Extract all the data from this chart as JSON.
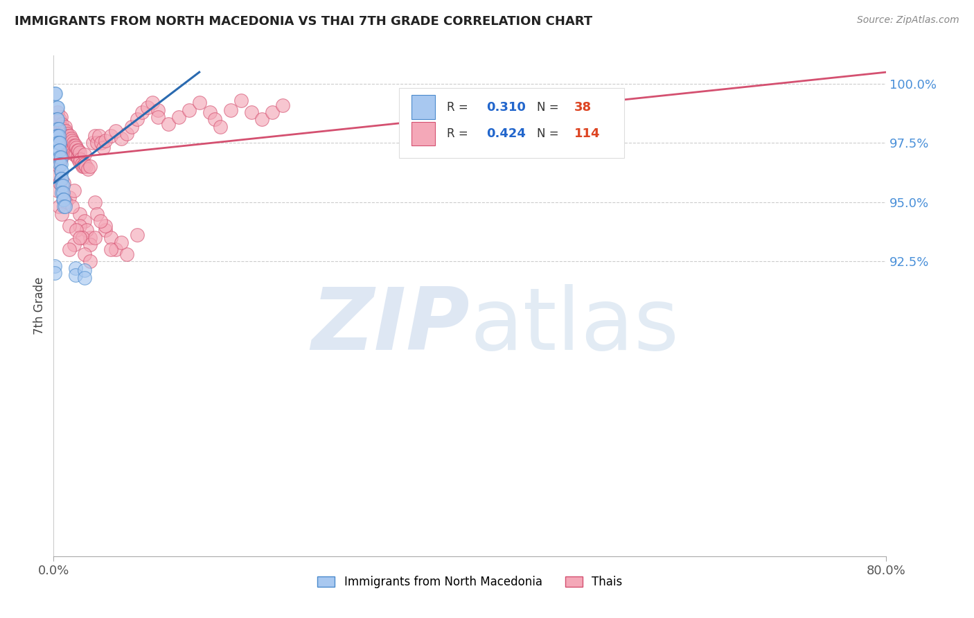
{
  "title": "IMMIGRANTS FROM NORTH MACEDONIA VS THAI 7TH GRADE CORRELATION CHART",
  "source": "Source: ZipAtlas.com",
  "ylabel": "7th Grade",
  "blue_color": "#A8C8F0",
  "pink_color": "#F4A8B8",
  "blue_edge_color": "#4A8ACC",
  "pink_edge_color": "#D45070",
  "blue_line_color": "#2A6AB0",
  "pink_line_color": "#D45070",
  "xmin": 0.0,
  "xmax": 0.8,
  "ymin": 80.0,
  "ymax": 101.2,
  "ytick_vals": [
    92.5,
    95.0,
    97.5,
    100.0
  ],
  "ytick_labels": [
    "92.5%",
    "95.0%",
    "97.5%",
    "100.0%"
  ],
  "blue_scatter": [
    [
      0.001,
      99.6
    ],
    [
      0.002,
      99.6
    ],
    [
      0.003,
      99.0
    ],
    [
      0.004,
      99.0
    ],
    [
      0.003,
      98.5
    ],
    [
      0.004,
      98.5
    ],
    [
      0.004,
      98.1
    ],
    [
      0.005,
      98.1
    ],
    [
      0.003,
      97.8
    ],
    [
      0.004,
      97.8
    ],
    [
      0.005,
      97.8
    ],
    [
      0.004,
      97.5
    ],
    [
      0.005,
      97.5
    ],
    [
      0.006,
      97.5
    ],
    [
      0.005,
      97.2
    ],
    [
      0.006,
      97.2
    ],
    [
      0.006,
      96.9
    ],
    [
      0.007,
      96.9
    ],
    [
      0.006,
      96.6
    ],
    [
      0.007,
      96.6
    ],
    [
      0.007,
      96.3
    ],
    [
      0.008,
      96.3
    ],
    [
      0.007,
      96.0
    ],
    [
      0.008,
      96.0
    ],
    [
      0.008,
      95.7
    ],
    [
      0.009,
      95.7
    ],
    [
      0.008,
      95.4
    ],
    [
      0.009,
      95.4
    ],
    [
      0.009,
      95.1
    ],
    [
      0.01,
      95.1
    ],
    [
      0.01,
      94.8
    ],
    [
      0.011,
      94.8
    ],
    [
      0.001,
      92.3
    ],
    [
      0.001,
      92.0
    ],
    [
      0.021,
      92.2
    ],
    [
      0.021,
      91.9
    ],
    [
      0.03,
      92.1
    ],
    [
      0.03,
      91.8
    ]
  ],
  "pink_scatter": [
    [
      0.002,
      98.2
    ],
    [
      0.003,
      98.5
    ],
    [
      0.004,
      98.8
    ],
    [
      0.005,
      98.3
    ],
    [
      0.005,
      98.0
    ],
    [
      0.006,
      98.5
    ],
    [
      0.006,
      98.0
    ],
    [
      0.007,
      98.6
    ],
    [
      0.007,
      98.2
    ],
    [
      0.007,
      97.8
    ],
    [
      0.008,
      98.3
    ],
    [
      0.008,
      97.9
    ],
    [
      0.008,
      97.5
    ],
    [
      0.009,
      98.1
    ],
    [
      0.009,
      97.7
    ],
    [
      0.009,
      97.3
    ],
    [
      0.01,
      98.0
    ],
    [
      0.01,
      97.6
    ],
    [
      0.011,
      98.2
    ],
    [
      0.011,
      97.8
    ],
    [
      0.011,
      97.4
    ],
    [
      0.012,
      98.0
    ],
    [
      0.012,
      97.6
    ],
    [
      0.012,
      97.2
    ],
    [
      0.013,
      97.9
    ],
    [
      0.013,
      97.5
    ],
    [
      0.013,
      97.1
    ],
    [
      0.014,
      97.8
    ],
    [
      0.014,
      97.4
    ],
    [
      0.015,
      97.7
    ],
    [
      0.015,
      97.3
    ],
    [
      0.016,
      97.8
    ],
    [
      0.016,
      97.4
    ],
    [
      0.017,
      97.7
    ],
    [
      0.017,
      97.3
    ],
    [
      0.018,
      97.6
    ],
    [
      0.018,
      97.2
    ],
    [
      0.019,
      97.5
    ],
    [
      0.019,
      97.1
    ],
    [
      0.02,
      97.4
    ],
    [
      0.02,
      97.0
    ],
    [
      0.021,
      97.4
    ],
    [
      0.021,
      97.0
    ],
    [
      0.022,
      97.3
    ],
    [
      0.023,
      97.2
    ],
    [
      0.023,
      96.9
    ],
    [
      0.024,
      97.2
    ],
    [
      0.024,
      96.8
    ],
    [
      0.025,
      97.1
    ],
    [
      0.025,
      96.7
    ],
    [
      0.026,
      96.8
    ],
    [
      0.027,
      96.6
    ],
    [
      0.028,
      96.5
    ],
    [
      0.029,
      96.5
    ],
    [
      0.03,
      97.0
    ],
    [
      0.03,
      96.6
    ],
    [
      0.031,
      96.5
    ],
    [
      0.033,
      96.4
    ],
    [
      0.035,
      96.5
    ],
    [
      0.038,
      97.5
    ],
    [
      0.04,
      97.8
    ],
    [
      0.042,
      97.5
    ],
    [
      0.044,
      97.8
    ],
    [
      0.046,
      97.5
    ],
    [
      0.048,
      97.3
    ],
    [
      0.05,
      97.6
    ],
    [
      0.055,
      97.8
    ],
    [
      0.06,
      98.0
    ],
    [
      0.065,
      97.7
    ],
    [
      0.07,
      97.9
    ],
    [
      0.075,
      98.2
    ],
    [
      0.08,
      98.5
    ],
    [
      0.085,
      98.8
    ],
    [
      0.09,
      99.0
    ],
    [
      0.095,
      99.2
    ],
    [
      0.1,
      98.9
    ],
    [
      0.1,
      98.6
    ],
    [
      0.11,
      98.3
    ],
    [
      0.12,
      98.6
    ],
    [
      0.13,
      98.9
    ],
    [
      0.14,
      99.2
    ],
    [
      0.15,
      98.8
    ],
    [
      0.155,
      98.5
    ],
    [
      0.16,
      98.2
    ],
    [
      0.17,
      98.9
    ],
    [
      0.18,
      99.3
    ],
    [
      0.19,
      98.8
    ],
    [
      0.2,
      98.5
    ],
    [
      0.21,
      98.8
    ],
    [
      0.22,
      99.1
    ],
    [
      0.003,
      96.2
    ],
    [
      0.005,
      96.5
    ],
    [
      0.007,
      96.8
    ],
    [
      0.01,
      95.8
    ],
    [
      0.015,
      95.2
    ],
    [
      0.02,
      95.5
    ],
    [
      0.025,
      94.5
    ],
    [
      0.03,
      94.2
    ],
    [
      0.035,
      93.5
    ],
    [
      0.04,
      95.0
    ],
    [
      0.05,
      93.8
    ],
    [
      0.055,
      93.5
    ],
    [
      0.06,
      93.0
    ],
    [
      0.07,
      92.8
    ],
    [
      0.004,
      95.5
    ],
    [
      0.006,
      95.8
    ],
    [
      0.012,
      95.0
    ],
    [
      0.018,
      94.8
    ],
    [
      0.025,
      94.0
    ],
    [
      0.032,
      93.8
    ],
    [
      0.042,
      94.5
    ],
    [
      0.05,
      94.0
    ],
    [
      0.065,
      93.3
    ],
    [
      0.08,
      93.6
    ],
    [
      0.005,
      94.8
    ],
    [
      0.008,
      94.5
    ],
    [
      0.015,
      94.0
    ],
    [
      0.022,
      93.8
    ],
    [
      0.028,
      93.5
    ],
    [
      0.035,
      93.2
    ],
    [
      0.045,
      94.2
    ],
    [
      0.02,
      93.2
    ],
    [
      0.03,
      92.8
    ],
    [
      0.04,
      93.5
    ],
    [
      0.055,
      93.0
    ],
    [
      0.015,
      93.0
    ],
    [
      0.025,
      93.5
    ],
    [
      0.035,
      92.5
    ]
  ],
  "blue_line_x": [
    0.0,
    0.14
  ],
  "blue_line_y": [
    95.8,
    100.5
  ],
  "pink_line_x": [
    0.0,
    0.8
  ],
  "pink_line_y": [
    96.8,
    100.5
  ]
}
